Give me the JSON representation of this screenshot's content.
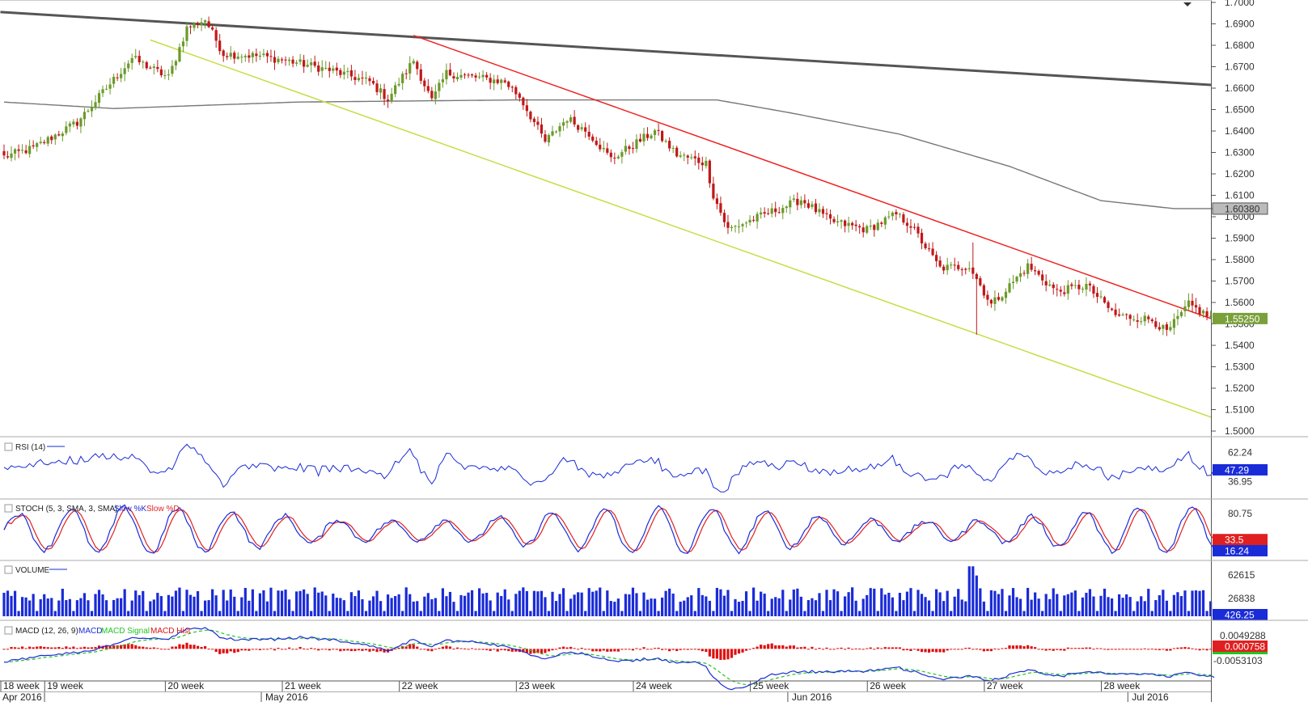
{
  "colors": {
    "up": "#6a9a2a",
    "down": "#c01818",
    "sma": "#777777",
    "trend_long": "#555555",
    "trend_red": "#ee2222",
    "trend_green": "#c8dc44",
    "rsi": "#1a2bd8",
    "stoch_k": "#1a2bd8",
    "stoch_d": "#e02020",
    "volume": "#1a2bd8",
    "macd": "#1a2bd8",
    "macd_signal": "#22c322",
    "macd_hist": "#dd1111",
    "price_tag": "#7aa03a",
    "sma_tag": "#555555",
    "rsi_tag": "#1a2bd8",
    "stoch_k_tag": "#1a2bd8",
    "stoch_d_tag": "#e02020",
    "volume_tag": "#1a2bd8",
    "macd_tag": "#e02020"
  },
  "icons": {
    "scroll": "caret-down-icon",
    "panel_close": "close-box-icon"
  },
  "chart_data": {
    "type": "candlestick",
    "y_ticks": [
      "1.7000",
      "1.6900",
      "1.6800",
      "1.6700",
      "1.6600",
      "1.6500",
      "1.6400",
      "1.6300",
      "1.6200",
      "1.6100",
      "1.6000",
      "1.5900",
      "1.5800",
      "1.5700",
      "1.5600",
      "1.5500",
      "1.5400",
      "1.5300",
      "1.5200",
      "1.5100",
      "1.5000"
    ],
    "ylim": [
      1.4995,
      1.7005
    ],
    "last_price": "1.55250",
    "sma_value": "1.60380",
    "anchors": [
      [
        0,
        1.628
      ],
      [
        8,
        1.632
      ],
      [
        20,
        1.644
      ],
      [
        35,
        1.674
      ],
      [
        45,
        1.665
      ],
      [
        50,
        1.688
      ],
      [
        55,
        1.692
      ],
      [
        60,
        1.676
      ],
      [
        70,
        1.675
      ],
      [
        80,
        1.672
      ],
      [
        90,
        1.668
      ],
      [
        100,
        1.663
      ],
      [
        105,
        1.655
      ],
      [
        112,
        1.673
      ],
      [
        117,
        1.654
      ],
      [
        121,
        1.667
      ],
      [
        137,
        1.663
      ],
      [
        141,
        1.656
      ],
      [
        148,
        1.635
      ],
      [
        154,
        1.646
      ],
      [
        160,
        1.639
      ],
      [
        166,
        1.627
      ],
      [
        178,
        1.64
      ],
      [
        184,
        1.629
      ],
      [
        192,
        1.625
      ],
      [
        194,
        1.61
      ],
      [
        198,
        1.594
      ],
      [
        208,
        1.601
      ],
      [
        218,
        1.608
      ],
      [
        226,
        1.598
      ],
      [
        236,
        1.594
      ],
      [
        244,
        1.601
      ],
      [
        248,
        1.596
      ],
      [
        256,
        1.576
      ],
      [
        264,
        1.577
      ],
      [
        270,
        1.559
      ],
      [
        274,
        1.566
      ],
      [
        280,
        1.577
      ],
      [
        288,
        1.565
      ],
      [
        296,
        1.568
      ],
      [
        304,
        1.554
      ],
      [
        314,
        1.552
      ],
      [
        318,
        1.546
      ],
      [
        324,
        1.559
      ],
      [
        330,
        1.553
      ]
    ],
    "sma_points": [
      [
        0,
        1.6535
      ],
      [
        30,
        1.6505
      ],
      [
        80,
        1.6535
      ],
      [
        140,
        1.6545
      ],
      [
        170,
        1.6545
      ],
      [
        195,
        1.6545
      ],
      [
        215,
        1.6485
      ],
      [
        245,
        1.6385
      ],
      [
        275,
        1.6235
      ],
      [
        300,
        1.6075
      ],
      [
        320,
        1.6038
      ]
    ],
    "trendlines": {
      "long": [
        [
          -1,
          1.6955
        ],
        [
          332,
          1.6615
        ]
      ],
      "red": [
        [
          112,
          1.6846
        ],
        [
          332,
          1.5525
        ]
      ],
      "green": [
        [
          40,
          1.6825
        ],
        [
          332,
          1.5065
        ]
      ]
    },
    "rsi": {
      "title": "RSI (14)",
      "levels": [
        "62.24",
        "36.95"
      ],
      "last": "47.29",
      "ylim": [
        24,
        74
      ]
    },
    "stoch": {
      "title": "STOCH (5, 3, SMA, 3, SMA)",
      "k_label": "Slow %K",
      "d_label": "Slow %D",
      "level": "80.75",
      "last_k": "16.24",
      "last_d": "33.5"
    },
    "volume": {
      "title": "VOLUME",
      "levels": [
        "62615",
        "26838"
      ],
      "last": "426.25",
      "ylim": [
        0,
        80000
      ]
    },
    "macd": {
      "title": "MACD (12, 26, 9)",
      "macd_label": "MACD",
      "signal_label": "MACD Signal",
      "hist_label": "MACD Hist",
      "levels": [
        "0.0049288",
        "-0.0053103"
      ],
      "last": "0.000758",
      "ylim": [
        -0.0072,
        0.0058
      ]
    },
    "week_labels": [
      "18 week",
      "19 week",
      "20 week",
      "21 week",
      "22 week",
      "23 week",
      "24 week",
      "25 week",
      "26 week",
      "27 week",
      "28 week"
    ],
    "week_bars": [
      0,
      12,
      45,
      77,
      109,
      141,
      173,
      205,
      237,
      269,
      301
    ],
    "month_labels": [
      "Apr 2016",
      "May 2016",
      "Jun 2016",
      "Jul 2016"
    ],
    "month_bars": [
      0,
      77,
      221,
      314
    ]
  }
}
